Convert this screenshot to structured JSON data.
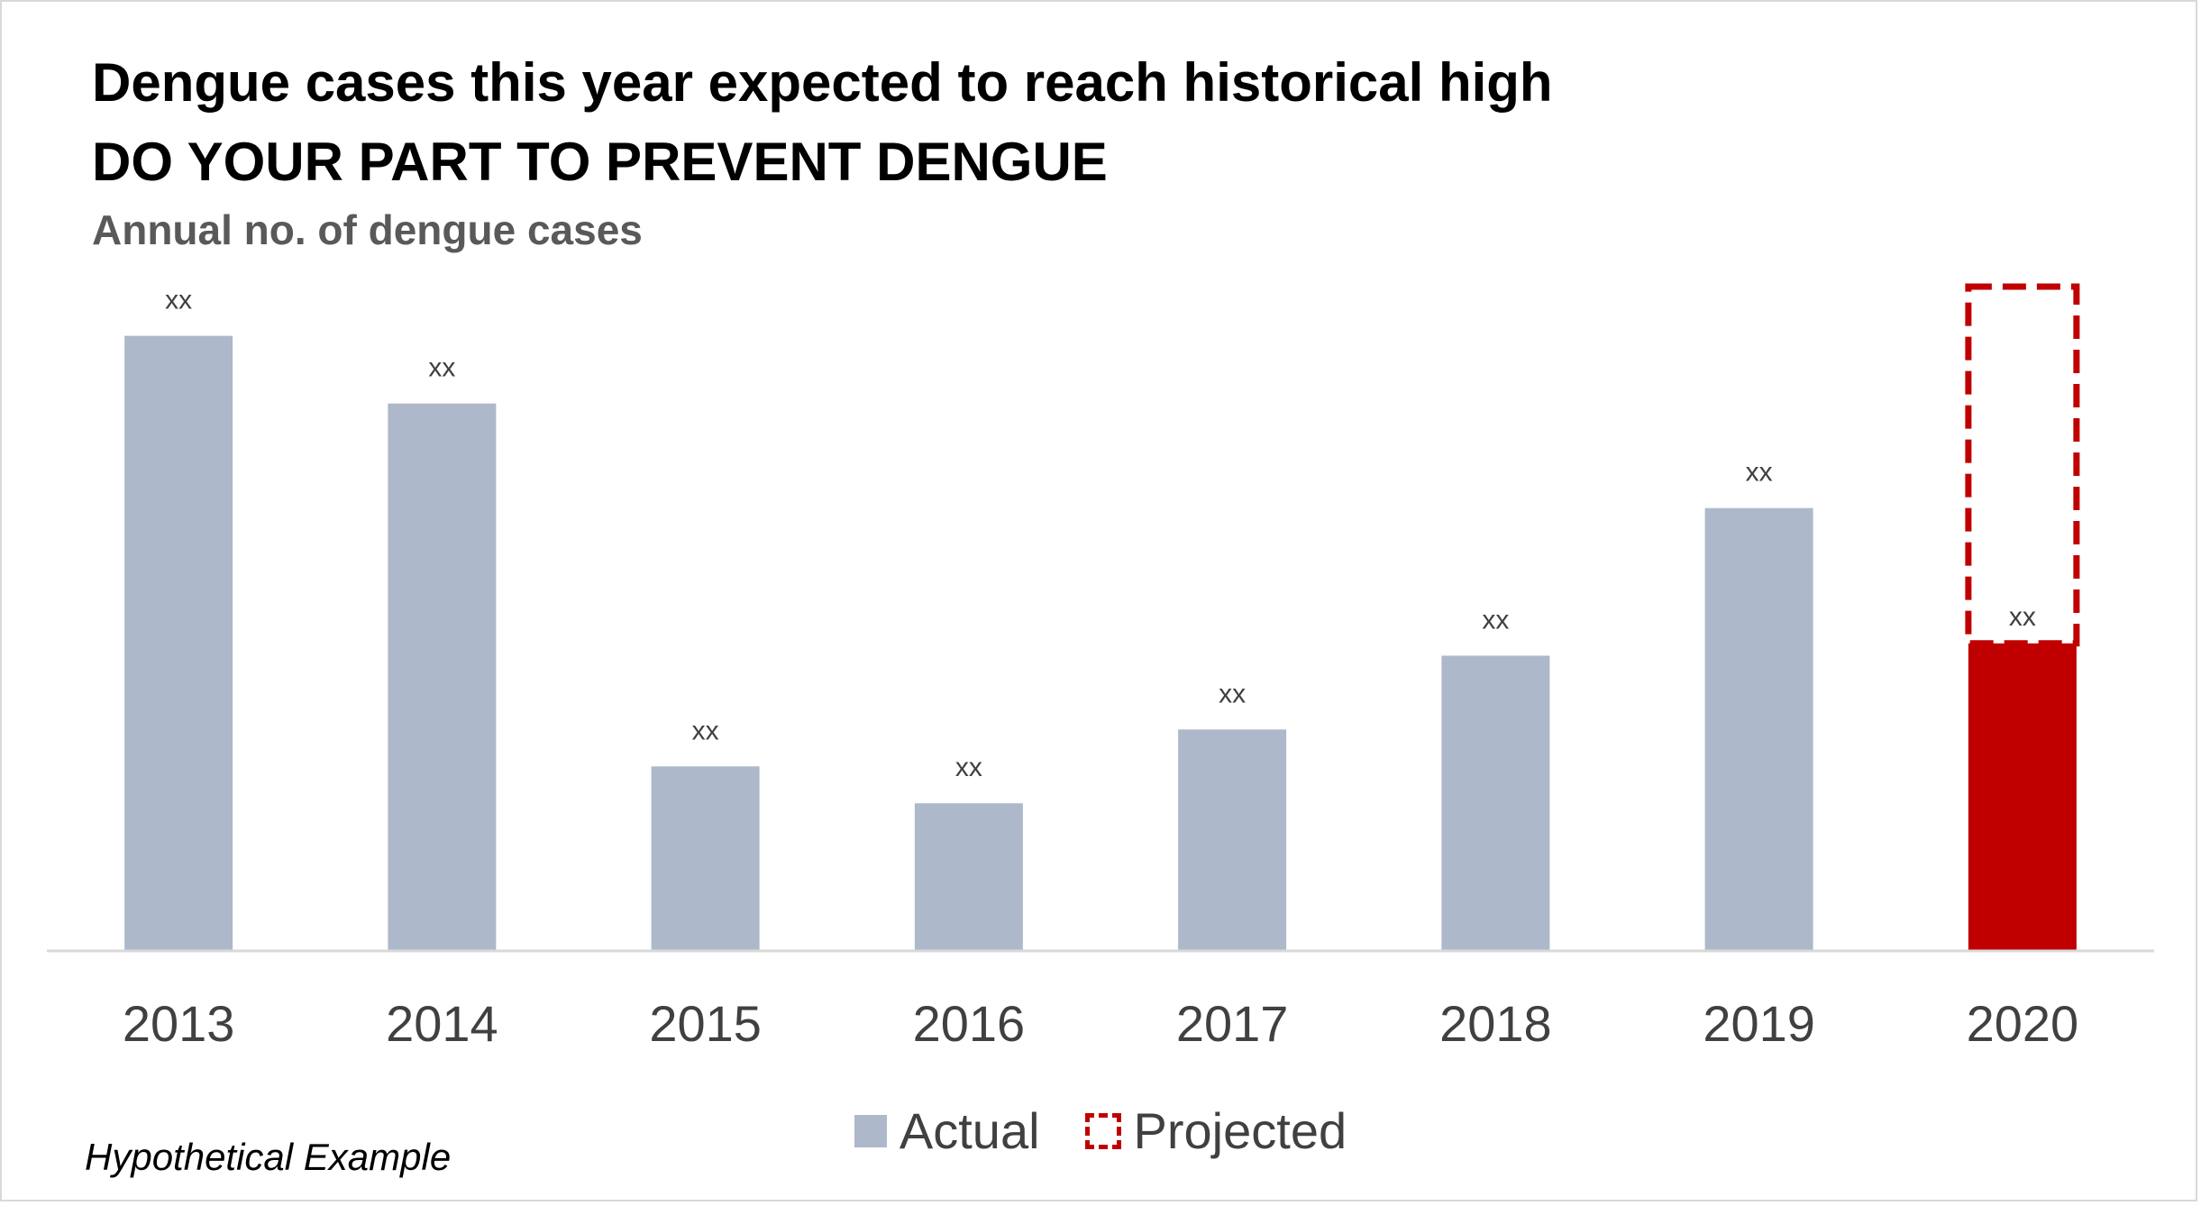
{
  "header": {
    "title_line1": "Dengue cases this year expected to reach historical high",
    "title_line2": "DO YOUR PART TO PREVENT DENGUE",
    "subtitle": "Annual no. of dengue cases"
  },
  "footnote": "Hypothetical Example",
  "colors": {
    "actual": "#adb9ca",
    "projected": "#c00000",
    "axis": "#d9d9d9",
    "label": "#404040"
  },
  "chart_data": {
    "type": "bar",
    "categories": [
      "2013",
      "2014",
      "2015",
      "2016",
      "2017",
      "2018",
      "2019",
      "2020"
    ],
    "series": [
      {
        "name": "Actual",
        "values": [
          100,
          89,
          30,
          24,
          36,
          48,
          72,
          50
        ]
      },
      {
        "name": "Projected",
        "values": [
          0,
          0,
          0,
          0,
          0,
          0,
          0,
          58
        ]
      }
    ],
    "data_labels": [
      "xx",
      "xx",
      "xx",
      "xx",
      "xx",
      "xx",
      "xx",
      "xx"
    ],
    "ylim": [
      0,
      108
    ],
    "grid": false,
    "legend_position": "bottom"
  }
}
